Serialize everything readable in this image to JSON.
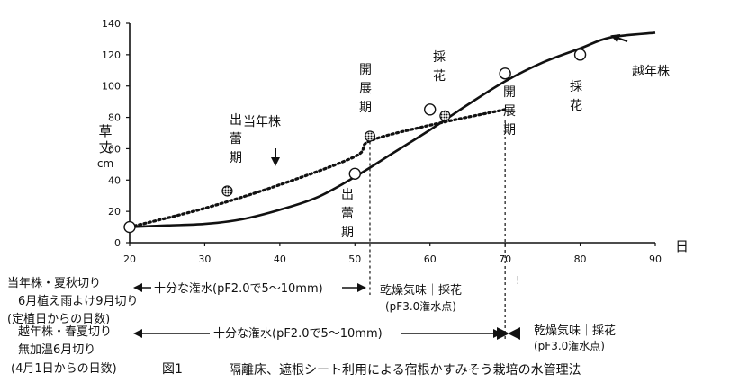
{
  "chart_data": {
    "type": "line",
    "x_unit": "日",
    "ylabel": "草丈cm",
    "xlim": [
      20,
      90
    ],
    "ylim": [
      0,
      140
    ],
    "x_ticks": [
      20,
      30,
      40,
      50,
      60,
      70,
      80,
      90
    ],
    "y_ticks": [
      0,
      20,
      40,
      60,
      80,
      100,
      120,
      140
    ],
    "series": [
      {
        "name": "当年株",
        "style": "dotted",
        "curve": [
          [
            20,
            10
          ],
          [
            30,
            22
          ],
          [
            40,
            37
          ],
          [
            50,
            55
          ],
          [
            52,
            65
          ],
          [
            60,
            75
          ],
          [
            70,
            85
          ],
          [
            80,
            120
          ]
        ],
        "points": [
          [
            20,
            10
          ],
          [
            33,
            33
          ],
          [
            52,
            68
          ],
          [
            62,
            81
          ]
        ]
      },
      {
        "name": "越年株",
        "style": "solid",
        "curve": [
          [
            20,
            10
          ],
          [
            25,
            11
          ],
          [
            30,
            12
          ],
          [
            35,
            15
          ],
          [
            40,
            21
          ],
          [
            45,
            29
          ],
          [
            50,
            42
          ],
          [
            55,
            57
          ],
          [
            60,
            72
          ],
          [
            65,
            88
          ],
          [
            70,
            103
          ],
          [
            75,
            115
          ],
          [
            80,
            124
          ],
          [
            84,
            131
          ],
          [
            90,
            134
          ]
        ],
        "points": [
          [
            20,
            10
          ],
          [
            50,
            44
          ],
          [
            60,
            85
          ],
          [
            70,
            108
          ],
          [
            80,
            120
          ]
        ]
      }
    ],
    "annotations": {
      "touen_label": "当年株",
      "etsunen_label": "越年株",
      "stage_bud_touen": "出蕾期",
      "stage_open_touen": "開展期",
      "stage_harvest_touen": "採花",
      "stage_bud_etsunen": "出蕾期",
      "stage_open_etsunen": "開展期",
      "stage_harvest_etsunen": "採花"
    },
    "schedule": {
      "row1_left_line1": "当年株・夏秋切り",
      "row1_left_line2": "6月植え雨よけ9月切り",
      "row1_irrigation": "十分な潅水(pF2.0で5〜10mm)",
      "row1_dry": "乾燥気味｜採花",
      "row1_dry_sub": "(pF3.0潅水点)",
      "row1_mark": "!",
      "row1_basis": "(定植日からの日数)",
      "row2_left_line1": "越年株・春夏切り",
      "row2_left_line2": "無加温6月切り",
      "row2_irrigation": "十分な潅水(pF2.0で5〜10mm)",
      "row2_dry": "乾燥気味｜採花",
      "row2_dry_sub": "(pF3.0潅水点)",
      "row2_basis": "(4月1日からの日数)"
    },
    "caption_fig": "図1",
    "caption_title": "隔離床、遮根シート利用による宿根かすみそう栽培の水管理法"
  }
}
